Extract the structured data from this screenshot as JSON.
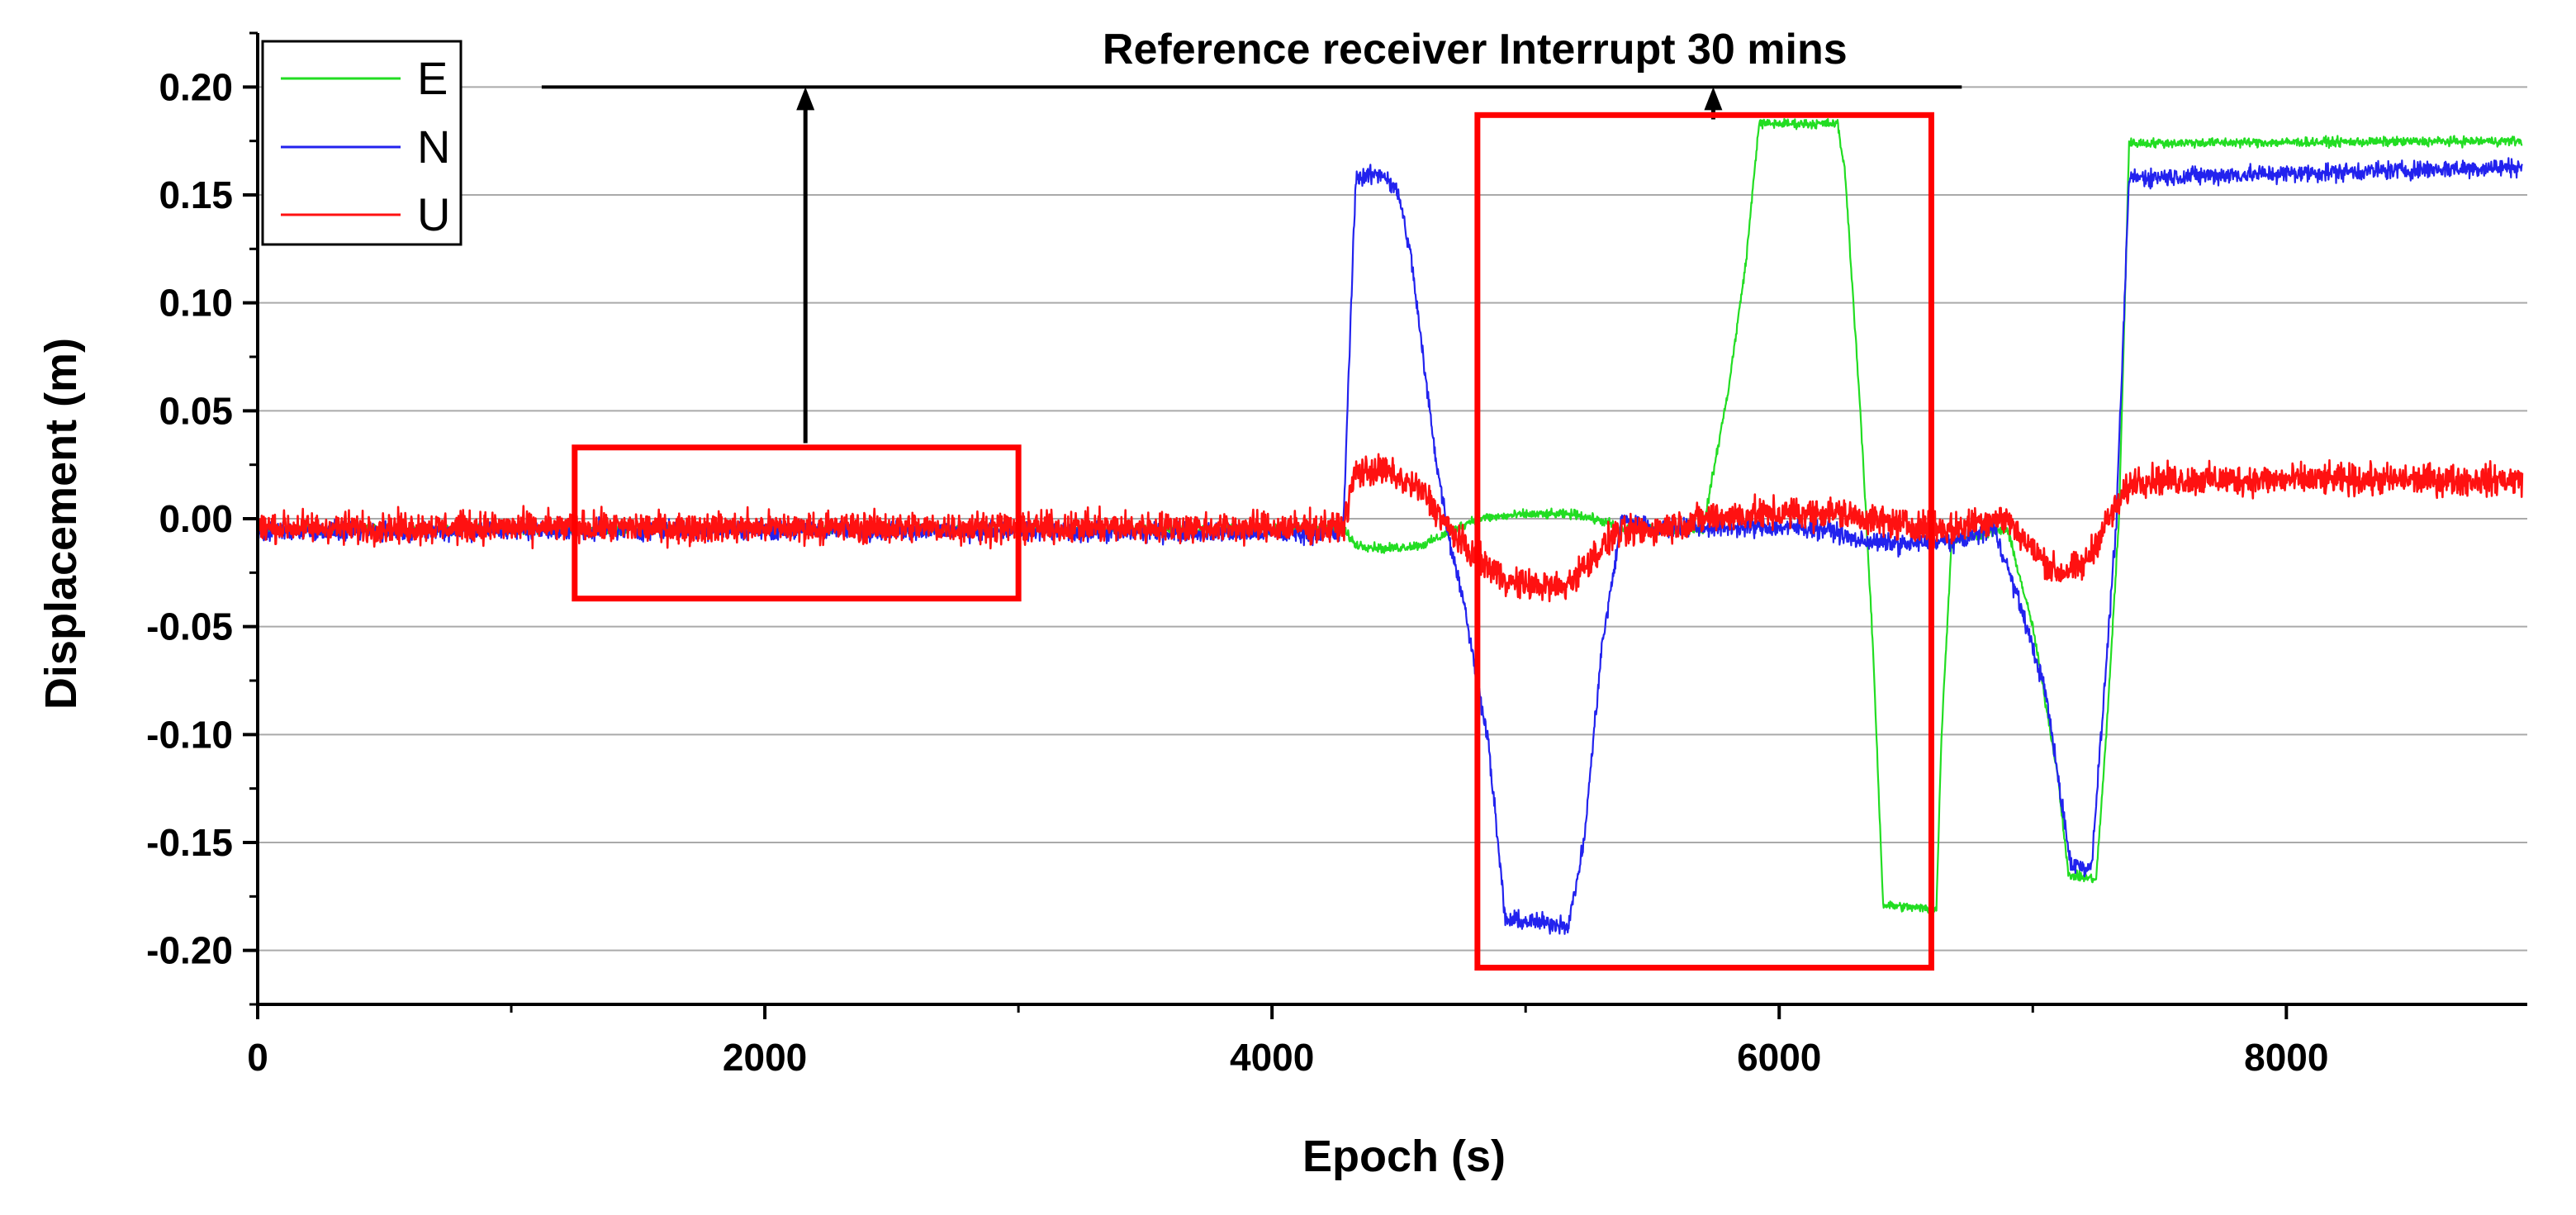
{
  "chart_data": {
    "type": "line",
    "title": "",
    "xlabel": "Epoch (s)",
    "ylabel": "Displacement (m)",
    "xlim": [
      0,
      8950
    ],
    "ylim": [
      -0.225,
      0.225
    ],
    "grid": true,
    "legend_position": "top-left",
    "x_ticks": [
      0,
      2000,
      4000,
      6000,
      8000
    ],
    "x_tick_labels": [
      "0",
      "2000",
      "4000",
      "6000",
      "8000"
    ],
    "y_ticks": [
      0.2,
      0.15,
      0.1,
      0.05,
      0.0,
      -0.05,
      -0.1,
      -0.15,
      -0.2
    ],
    "y_tick_labels": [
      "0.20",
      "0.15",
      "0.10",
      "0.05",
      "0.00",
      "-0.05",
      "-0.10",
      "-0.15",
      "-0.20"
    ],
    "series": [
      {
        "name": "E",
        "color": "#22dd22",
        "noise": 0.0015,
        "points": [
          [
            0,
            -0.005
          ],
          [
            4280,
            -0.005
          ],
          [
            4330,
            -0.012
          ],
          [
            4450,
            -0.014
          ],
          [
            4600,
            -0.012
          ],
          [
            4720,
            -0.005
          ],
          [
            4800,
            0.0
          ],
          [
            5000,
            0.002
          ],
          [
            5200,
            0.002
          ],
          [
            5330,
            -0.002
          ],
          [
            5380,
            -0.005
          ],
          [
            5500,
            -0.005
          ],
          [
            5700,
            -0.005
          ],
          [
            5730,
            0.015
          ],
          [
            5800,
            0.06
          ],
          [
            5870,
            0.12
          ],
          [
            5920,
            0.183
          ],
          [
            6230,
            0.183
          ],
          [
            6260,
            0.16
          ],
          [
            6320,
            0.05
          ],
          [
            6370,
            -0.06
          ],
          [
            6410,
            -0.179
          ],
          [
            6620,
            -0.181
          ],
          [
            6640,
            -0.1
          ],
          [
            6680,
            -0.01
          ],
          [
            6900,
            -0.005
          ],
          [
            7000,
            -0.05
          ],
          [
            7100,
            -0.12
          ],
          [
            7140,
            -0.165
          ],
          [
            7250,
            -0.167
          ],
          [
            7290,
            -0.1
          ],
          [
            7340,
            0.0
          ],
          [
            7380,
            0.174
          ],
          [
            8930,
            0.175
          ]
        ]
      },
      {
        "name": "N",
        "color": "#2222ee",
        "noise": 0.003,
        "points": [
          [
            0,
            -0.006
          ],
          [
            2000,
            -0.005
          ],
          [
            4280,
            -0.007
          ],
          [
            4330,
            0.158
          ],
          [
            4440,
            0.16
          ],
          [
            4500,
            0.15
          ],
          [
            4550,
            0.12
          ],
          [
            4600,
            0.07
          ],
          [
            4650,
            0.025
          ],
          [
            4700,
            -0.01
          ],
          [
            4760,
            -0.04
          ],
          [
            4800,
            -0.07
          ],
          [
            4850,
            -0.1
          ],
          [
            4920,
            -0.186
          ],
          [
            5170,
            -0.188
          ],
          [
            5230,
            -0.15
          ],
          [
            5300,
            -0.06
          ],
          [
            5380,
            0.0
          ],
          [
            5500,
            -0.004
          ],
          [
            6000,
            -0.004
          ],
          [
            6200,
            -0.005
          ],
          [
            6300,
            -0.01
          ],
          [
            6500,
            -0.012
          ],
          [
            6700,
            -0.01
          ],
          [
            6850,
            -0.005
          ],
          [
            6950,
            -0.04
          ],
          [
            7050,
            -0.08
          ],
          [
            7150,
            -0.16
          ],
          [
            7230,
            -0.162
          ],
          [
            7270,
            -0.1
          ],
          [
            7330,
            0.0
          ],
          [
            7380,
            0.158
          ],
          [
            8930,
            0.163
          ]
        ]
      },
      {
        "name": "U",
        "color": "#ff1111",
        "noise": 0.005,
        "points": [
          [
            0,
            -0.004
          ],
          [
            4280,
            -0.004
          ],
          [
            4330,
            0.022
          ],
          [
            4450,
            0.022
          ],
          [
            4600,
            0.012
          ],
          [
            4700,
            -0.005
          ],
          [
            4800,
            -0.018
          ],
          [
            4950,
            -0.03
          ],
          [
            5150,
            -0.032
          ],
          [
            5250,
            -0.02
          ],
          [
            5350,
            -0.007
          ],
          [
            5500,
            -0.005
          ],
          [
            5700,
            0.0
          ],
          [
            5900,
            0.002
          ],
          [
            6200,
            0.003
          ],
          [
            6500,
            -0.003
          ],
          [
            6700,
            -0.005
          ],
          [
            6800,
            0.0
          ],
          [
            6900,
            0.0
          ],
          [
            7000,
            -0.015
          ],
          [
            7100,
            -0.025
          ],
          [
            7200,
            -0.022
          ],
          [
            7300,
            0.0
          ],
          [
            7400,
            0.018
          ],
          [
            8930,
            0.018
          ]
        ]
      }
    ],
    "annotations": [
      {
        "type": "text",
        "text": "Reference receiver Interrupt 30 mins",
        "x": 4800,
        "y": 0.21
      },
      {
        "type": "hline",
        "x_start": 1120,
        "x_end": 6720,
        "y": 0.2
      },
      {
        "type": "arrow",
        "x": 2160,
        "y_from": 0.035,
        "y_to": 0.2
      },
      {
        "type": "arrow",
        "x": 5740,
        "y_from": 0.185,
        "y_to": 0.2
      },
      {
        "type": "rect",
        "color": "#ff0000",
        "x0": 1250,
        "x1": 3000,
        "y0": -0.037,
        "y1": 0.033
      },
      {
        "type": "rect",
        "color": "#ff0000",
        "x0": 4810,
        "x1": 6600,
        "y0": -0.208,
        "y1": 0.187
      }
    ]
  }
}
